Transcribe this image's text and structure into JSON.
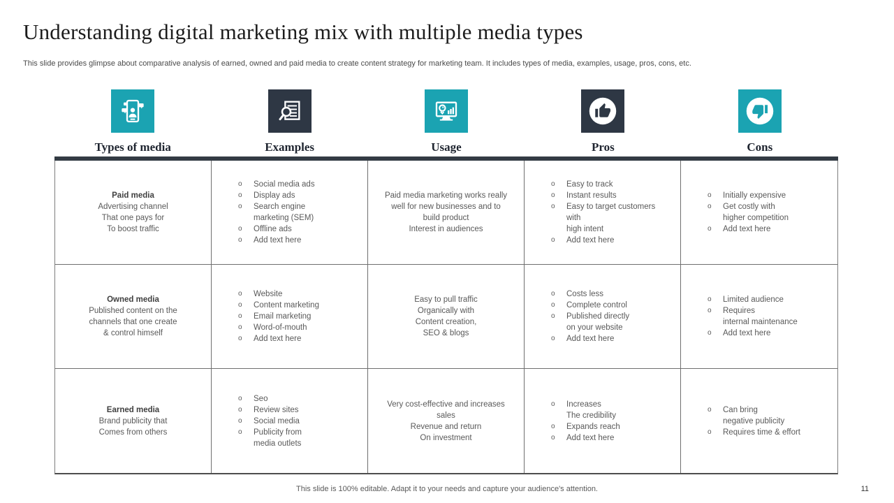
{
  "slide": {
    "title": "Understanding digital marketing mix with multiple media types",
    "subtitle": "This slide provides glimpse about comparative analysis of earned, owned and paid media to create content strategy for marketing team. It includes types of media, examples, usage, pros, cons, etc.",
    "footer_note": "This slide is 100% editable. Adapt it to your needs and capture your audience's attention.",
    "page_number": "11"
  },
  "colors": {
    "teal": "#1BA3B2",
    "dark": "#2E3744",
    "header_bar": "#333B44",
    "cell_text": "#595959"
  },
  "columns": [
    {
      "label": "Types of media",
      "icon": "social-media-phone-icon",
      "icon_bg": "teal"
    },
    {
      "label": "Examples",
      "icon": "search-document-icon",
      "icon_bg": "dark"
    },
    {
      "label": "Usage",
      "icon": "monitor-analytics-icon",
      "icon_bg": "teal"
    },
    {
      "label": "Pros",
      "icon": "thumbs-up-icon",
      "icon_bg": "dark"
    },
    {
      "label": "Cons",
      "icon": "thumbs-down-icon",
      "icon_bg": "teal"
    }
  ],
  "rows": [
    {
      "type_title": "Paid media",
      "type_desc": "Advertising channel\nThat one pays for\nTo boost traffic",
      "examples": [
        "Social media ads",
        "Display ads",
        "Search engine\nmarketing (SEM)",
        "Offline ads",
        "Add text here"
      ],
      "usage": "Paid media marketing works really\nwell for new businesses and to\nbuild product\nInterest in audiences",
      "pros": [
        "Easy to track",
        "Instant results",
        "Easy to target customers\nwith\nhigh intent",
        "Add text here"
      ],
      "cons": [
        "Initially expensive",
        "Get costly with\nhigher competition",
        "Add text here"
      ]
    },
    {
      "type_title": "Owned media",
      "type_desc": "Published content on the\nchannels that one create\n& control himself",
      "examples": [
        "Website",
        "Content marketing",
        "Email marketing",
        "Word-of-mouth",
        "Add text here"
      ],
      "usage": "Easy to pull traffic\nOrganically with\nContent creation,\nSEO & blogs",
      "pros": [
        "Costs less",
        "Complete control",
        "Published directly\non your website",
        "Add text here"
      ],
      "cons": [
        "Limited audience",
        "Requires\ninternal maintenance",
        "Add text here"
      ]
    },
    {
      "type_title": "Earned media",
      "type_desc": "Brand publicity that\nComes from others",
      "examples": [
        "Seo",
        "Review sites",
        "Social media",
        "Publicity from\nmedia outlets"
      ],
      "usage": "Very cost-effective and increases\nsales\nRevenue and return\nOn investment",
      "pros": [
        "Increases\nThe credibility",
        "Expands reach",
        "Add text here"
      ],
      "cons": [
        "Can bring\nnegative publicity",
        "Requires time & effort"
      ]
    }
  ]
}
